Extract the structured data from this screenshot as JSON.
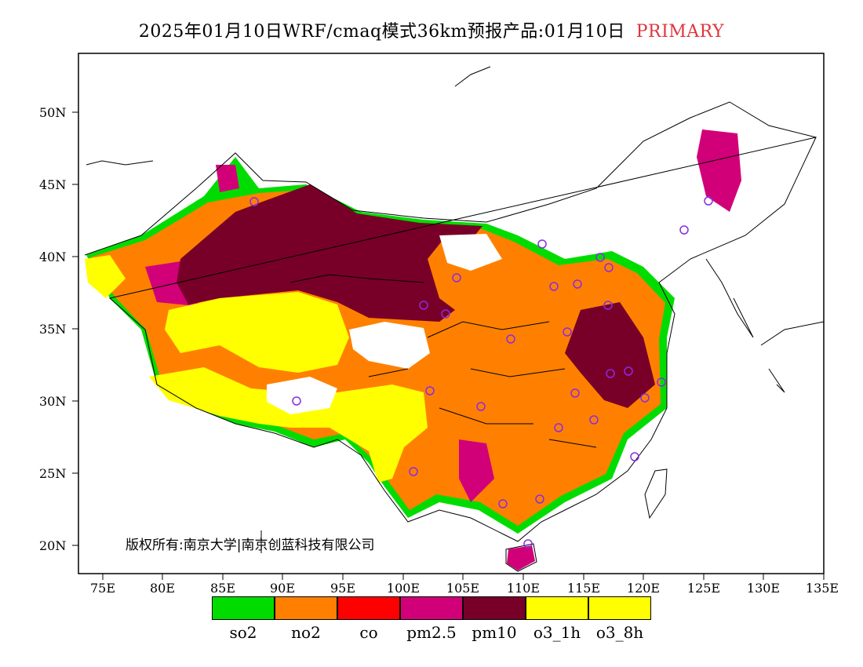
{
  "title": {
    "main": "2025年01月10日WRF/cmaq模式36km预报产品:01月10日",
    "product": "PRIMARY",
    "product_color": "#e0343c"
  },
  "axes": {
    "lat_labels": [
      "50N",
      "45N",
      "40N",
      "35N",
      "30N",
      "25N",
      "20N"
    ],
    "lon_labels": [
      "75E",
      "80E",
      "85E",
      "90E",
      "95E",
      "100E",
      "105E",
      "110E",
      "115E",
      "120E",
      "125E",
      "130E",
      "135E"
    ],
    "lon_range": [
      73,
      135
    ],
    "lat_range": [
      18,
      54
    ]
  },
  "copyright": "版权所有:南京大学|南京创蓝科技有限公司",
  "legend": [
    {
      "label": "so2",
      "color": "#00dc00"
    },
    {
      "label": "no2",
      "color": "#ff8000"
    },
    {
      "label": "co",
      "color": "#ff0000"
    },
    {
      "label": "pm2.5",
      "color": "#d20078"
    },
    {
      "label": "pm10",
      "color": "#780028"
    },
    {
      "label": "o3_1h",
      "color": "#ffff00"
    },
    {
      "label": "o3_8h",
      "color": "#ffff00"
    }
  ]
}
